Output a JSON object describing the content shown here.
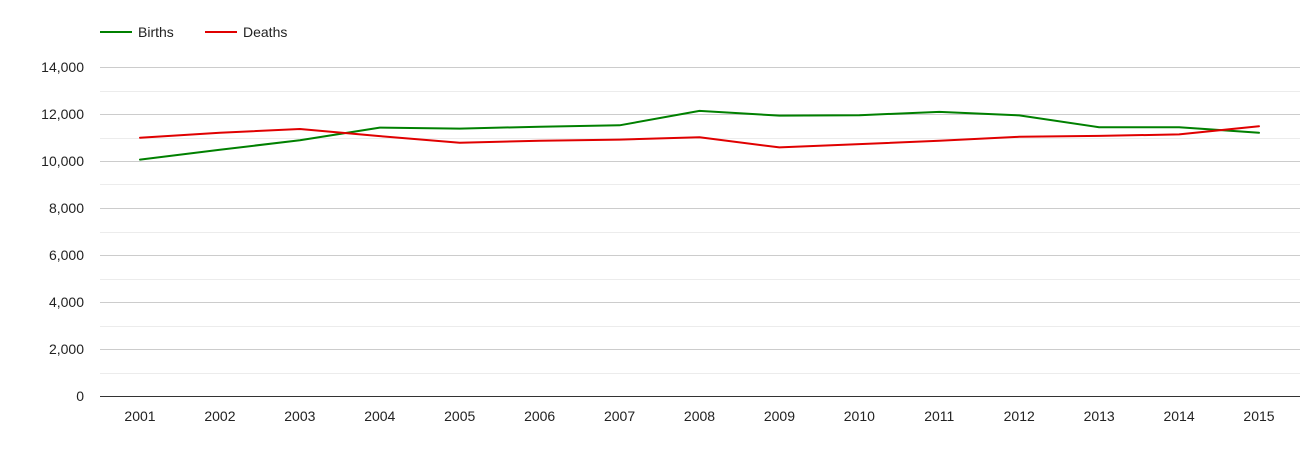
{
  "chart_data": {
    "type": "line",
    "title": "",
    "xlabel": "",
    "ylabel": "",
    "x": [
      "2001",
      "2002",
      "2003",
      "2004",
      "2005",
      "2006",
      "2007",
      "2008",
      "2009",
      "2010",
      "2011",
      "2012",
      "2013",
      "2014",
      "2015"
    ],
    "ylim": [
      0,
      14000
    ],
    "yticks": [
      0,
      2000,
      4000,
      6000,
      8000,
      10000,
      12000,
      14000
    ],
    "ytick_labels": [
      "0",
      "2,000",
      "4,000",
      "6,000",
      "8,000",
      "10,000",
      "12,000",
      "14,000"
    ],
    "grid": true,
    "legend": "top-left",
    "series": [
      {
        "name": "Births",
        "color": "#008000",
        "values": [
          10060,
          10480,
          10880,
          11420,
          11380,
          11460,
          11520,
          12130,
          11930,
          11950,
          12090,
          11940,
          11440,
          11440,
          11200
        ]
      },
      {
        "name": "Deaths",
        "color": "#e00000",
        "values": [
          10990,
          11200,
          11360,
          11060,
          10780,
          10860,
          10910,
          11010,
          10580,
          10720,
          10860,
          11030,
          11070,
          11130,
          11480
        ]
      }
    ]
  }
}
